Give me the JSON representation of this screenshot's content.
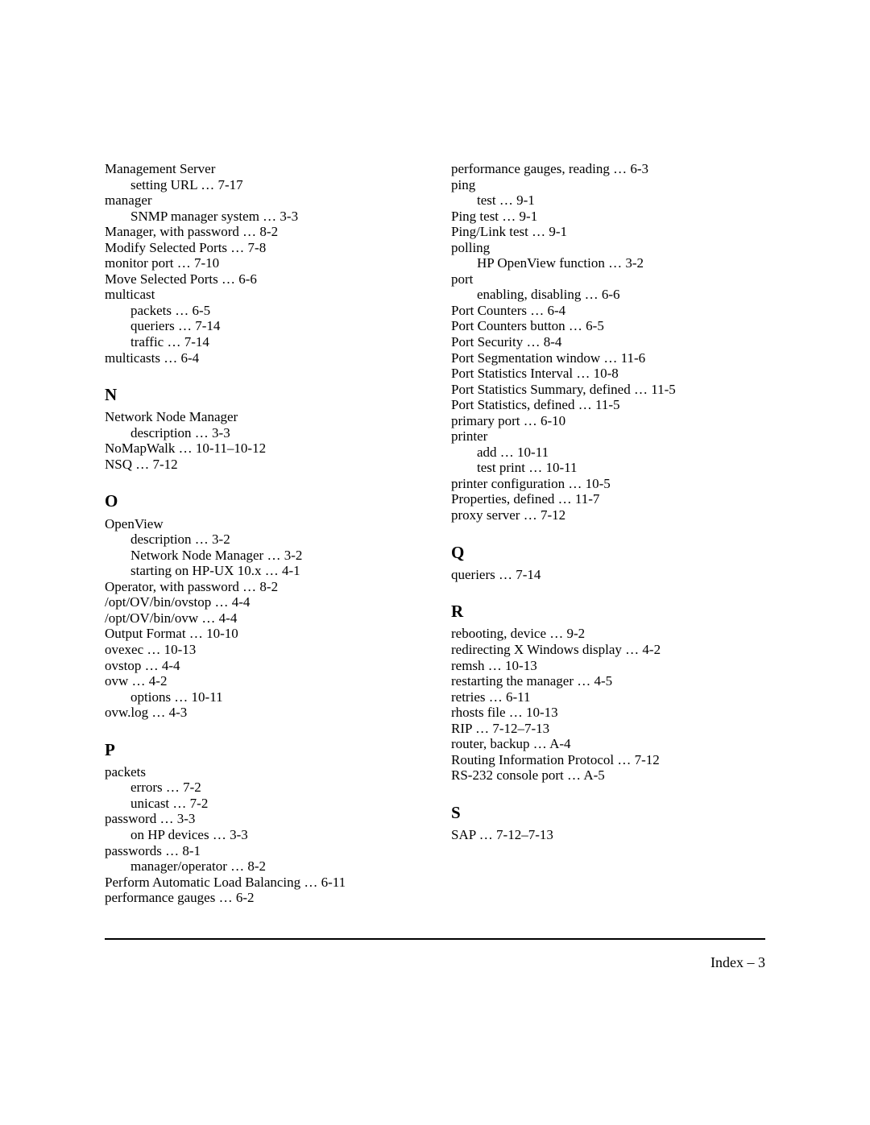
{
  "left_column": [
    {
      "text": "Management Server",
      "indent": 0
    },
    {
      "text": "setting URL … 7-17",
      "indent": 1
    },
    {
      "text": "manager",
      "indent": 0
    },
    {
      "text": "SNMP manager system … 3-3",
      "indent": 1
    },
    {
      "text": "Manager, with password … 8-2",
      "indent": 0
    },
    {
      "text": "Modify Selected Ports … 7-8",
      "indent": 0
    },
    {
      "text": "monitor port … 7-10",
      "indent": 0
    },
    {
      "text": "Move Selected Ports … 6-6",
      "indent": 0
    },
    {
      "text": "multicast",
      "indent": 0
    },
    {
      "text": "packets … 6-5",
      "indent": 1
    },
    {
      "text": "queriers … 7-14",
      "indent": 1
    },
    {
      "text": "traffic … 7-14",
      "indent": 1
    },
    {
      "text": "multicasts … 6-4",
      "indent": 0
    },
    {
      "text": "N",
      "heading": true
    },
    {
      "text": "Network Node Manager",
      "indent": 0
    },
    {
      "text": "description … 3-3",
      "indent": 1
    },
    {
      "text": "NoMapWalk … 10-11–10-12",
      "indent": 0
    },
    {
      "text": "NSQ … 7-12",
      "indent": 0
    },
    {
      "text": "O",
      "heading": true
    },
    {
      "text": "OpenView",
      "indent": 0
    },
    {
      "text": "description … 3-2",
      "indent": 1
    },
    {
      "text": "Network Node Manager … 3-2",
      "indent": 1
    },
    {
      "text": "starting on HP-UX 10.x … 4-1",
      "indent": 1
    },
    {
      "text": "Operator, with password … 8-2",
      "indent": 0
    },
    {
      "text": "/opt/OV/bin/ovstop … 4-4",
      "indent": 0
    },
    {
      "text": "/opt/OV/bin/ovw … 4-4",
      "indent": 0
    },
    {
      "text": "Output Format … 10-10",
      "indent": 0
    },
    {
      "text": "ovexec … 10-13",
      "indent": 0
    },
    {
      "text": "ovstop … 4-4",
      "indent": 0
    },
    {
      "text": "ovw … 4-2",
      "indent": 0
    },
    {
      "text": "options … 10-11",
      "indent": 1
    },
    {
      "text": "ovw.log … 4-3",
      "indent": 0
    },
    {
      "text": "P",
      "heading": true
    },
    {
      "text": "packets",
      "indent": 0
    },
    {
      "text": "errors … 7-2",
      "indent": 1
    },
    {
      "text": "unicast … 7-2",
      "indent": 1
    },
    {
      "text": "password … 3-3",
      "indent": 0
    },
    {
      "text": "on HP devices … 3-3",
      "indent": 1
    },
    {
      "text": "passwords … 8-1",
      "indent": 0
    },
    {
      "text": "manager/operator … 8-2",
      "indent": 1
    },
    {
      "text": "Perform Automatic Load Balancing … 6-11",
      "indent": 0
    },
    {
      "text": "performance gauges … 6-2",
      "indent": 0
    }
  ],
  "right_column": [
    {
      "text": "performance gauges, reading … 6-3",
      "indent": 0
    },
    {
      "text": "ping",
      "indent": 0
    },
    {
      "text": "test … 9-1",
      "indent": 1
    },
    {
      "text": "Ping test … 9-1",
      "indent": 0
    },
    {
      "text": "Ping/Link test … 9-1",
      "indent": 0
    },
    {
      "text": "polling",
      "indent": 0
    },
    {
      "text": "HP OpenView function … 3-2",
      "indent": 1
    },
    {
      "text": "port",
      "indent": 0
    },
    {
      "text": "enabling, disabling … 6-6",
      "indent": 1
    },
    {
      "text": "Port Counters … 6-4",
      "indent": 0
    },
    {
      "text": "Port Counters button … 6-5",
      "indent": 0
    },
    {
      "text": "Port Security … 8-4",
      "indent": 0
    },
    {
      "text": "Port Segmentation window … 11-6",
      "indent": 0
    },
    {
      "text": "Port Statistics Interval … 10-8",
      "indent": 0
    },
    {
      "text": "Port Statistics Summary, defined … 11-5",
      "indent": 0
    },
    {
      "text": "Port Statistics, defined … 11-5",
      "indent": 0
    },
    {
      "text": "primary port … 6-10",
      "indent": 0
    },
    {
      "text": "printer",
      "indent": 0
    },
    {
      "text": "add … 10-11",
      "indent": 1
    },
    {
      "text": "test print … 10-11",
      "indent": 1
    },
    {
      "text": "printer configuration … 10-5",
      "indent": 0
    },
    {
      "text": "Properties, defined … 11-7",
      "indent": 0
    },
    {
      "text": "proxy server … 7-12",
      "indent": 0
    },
    {
      "text": "Q",
      "heading": true
    },
    {
      "text": "queriers … 7-14",
      "indent": 0
    },
    {
      "text": "R",
      "heading": true
    },
    {
      "text": "rebooting, device … 9-2",
      "indent": 0
    },
    {
      "text": "redirecting X Windows display … 4-2",
      "indent": 0
    },
    {
      "text": "remsh … 10-13",
      "indent": 0
    },
    {
      "text": "restarting the manager … 4-5",
      "indent": 0
    },
    {
      "text": "retries … 6-11",
      "indent": 0
    },
    {
      "text": "rhosts file … 10-13",
      "indent": 0
    },
    {
      "text": "RIP … 7-12–7-13",
      "indent": 0
    },
    {
      "text": "router, backup … A-4",
      "indent": 0
    },
    {
      "text": "Routing Information Protocol … 7-12",
      "indent": 0
    },
    {
      "text": "RS-232 console port … A-5",
      "indent": 0
    },
    {
      "text": "S",
      "heading": true
    },
    {
      "text": "SAP … 7-12–7-13",
      "indent": 0
    }
  ],
  "footer": "Index – 3"
}
